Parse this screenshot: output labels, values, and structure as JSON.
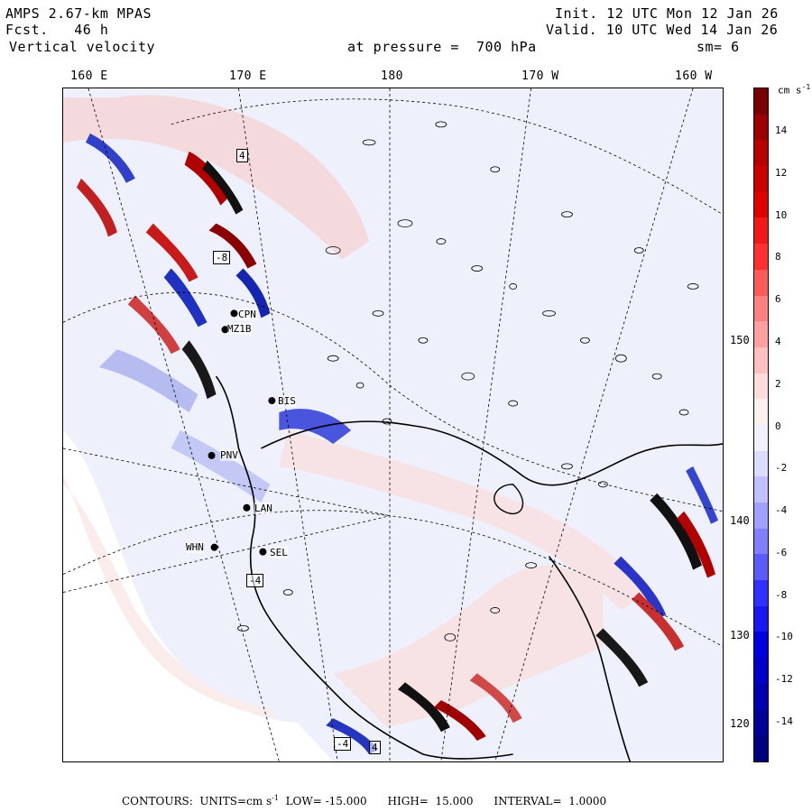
{
  "header": {
    "model": "AMPS 2.67-km MPAS",
    "fcst_label": "Fcst.",
    "fcst_value": "46 h",
    "field": "Vertical velocity",
    "pressure_label": "at pressure =",
    "pressure_value": "700 hPa",
    "init_label": "Init.",
    "init_value": "12 UTC Mon 12 Jan 26",
    "valid_label": "Valid.",
    "valid_value": "10 UTC Wed 14 Jan 26",
    "smoothing": "sm= 6"
  },
  "longitude_labels": [
    "160 E",
    "170 E",
    "180",
    "170 W",
    "160 W"
  ],
  "latitude_labels": [
    "150 W",
    "140 W",
    "130 W",
    "120 W"
  ],
  "colorbar": {
    "unit": "cm s",
    "unit_exp": "-1",
    "ticks": [
      "14",
      "12",
      "10",
      "8",
      "6",
      "4",
      "2",
      "0",
      "-2",
      "-4",
      "-6",
      "-8",
      "-10",
      "-12",
      "-14"
    ],
    "colors": [
      "#7a0000",
      "#9c0000",
      "#b80000",
      "#cc0000",
      "#e00000",
      "#f01818",
      "#ff3030",
      "#ff5a5a",
      "#ff8080",
      "#ffa0a0",
      "#ffc0c0",
      "#ffdcdc",
      "#fff0f0",
      "#f0f0ff",
      "#dcdcff",
      "#c0c0ff",
      "#a0a0ff",
      "#8080ff",
      "#5a5aff",
      "#3030ff",
      "#1818f0",
      "#0000e0",
      "#0000c8",
      "#0000b0",
      "#000098",
      "#000080"
    ]
  },
  "stations": [
    "CPN",
    "MZ1B",
    "BIS",
    "PNV",
    "LAN",
    "WHN",
    "SEL"
  ],
  "contour_values": [
    "4",
    "-8",
    "4",
    "-4",
    "-4"
  ],
  "footer": {
    "contours_label": "CONTOURS:",
    "units_label": "UNITS=cm s",
    "units_exp": "-1",
    "low_label": "LOW=",
    "low_value": "-15.000",
    "high_label": "HIGH=",
    "high_value": "15.000",
    "interval_label": "INTERVAL=",
    "interval_value": "1.0000"
  }
}
